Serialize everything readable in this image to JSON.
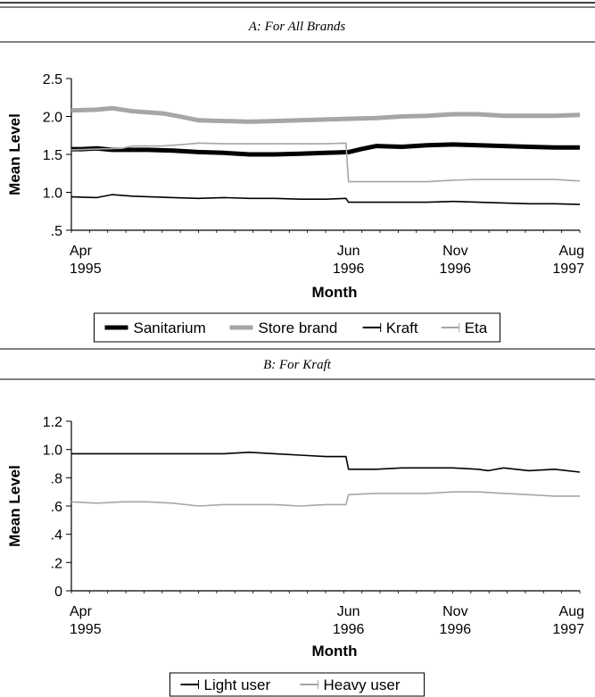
{
  "chart_data": [
    {
      "panel_title": "A: For All Brands",
      "type": "line",
      "xlabel": "Month",
      "ylabel": "Mean Level",
      "ylim": [
        0.5,
        2.5
      ],
      "yticks": [
        "2.5",
        "2.0",
        "1.5",
        "1.0",
        ".5"
      ],
      "xticks": [
        {
          "line1": "Apr",
          "line2": "1995",
          "t": 0
        },
        {
          "line1": "Jun",
          "line2": "1996",
          "t": 0.545
        },
        {
          "line1": "Nov",
          "line2": "1996",
          "t": 0.755
        },
        {
          "line1": "Aug",
          "line2": "1997",
          "t": 1
        }
      ],
      "legend_position": "bottom",
      "series": [
        {
          "name": "Sanitarium",
          "color": "#000000",
          "style": "thick",
          "points": [
            [
              0,
              1.57
            ],
            [
              0.02,
              1.57
            ],
            [
              0.05,
              1.58
            ],
            [
              0.08,
              1.56
            ],
            [
              0.15,
              1.56
            ],
            [
              0.2,
              1.55
            ],
            [
              0.25,
              1.53
            ],
            [
              0.3,
              1.52
            ],
            [
              0.35,
              1.5
            ],
            [
              0.4,
              1.5
            ],
            [
              0.45,
              1.51
            ],
            [
              0.5,
              1.52
            ],
            [
              0.545,
              1.53
            ],
            [
              0.57,
              1.57
            ],
            [
              0.6,
              1.61
            ],
            [
              0.65,
              1.6
            ],
            [
              0.7,
              1.62
            ],
            [
              0.75,
              1.63
            ],
            [
              0.8,
              1.62
            ],
            [
              0.85,
              1.61
            ],
            [
              0.9,
              1.6
            ],
            [
              0.95,
              1.59
            ],
            [
              1.0,
              1.59
            ]
          ]
        },
        {
          "name": "Store brand",
          "color": "#a6a6a6",
          "style": "thick",
          "points": [
            [
              0,
              2.08
            ],
            [
              0.05,
              2.09
            ],
            [
              0.08,
              2.11
            ],
            [
              0.12,
              2.07
            ],
            [
              0.18,
              2.04
            ],
            [
              0.22,
              1.99
            ],
            [
              0.25,
              1.95
            ],
            [
              0.3,
              1.94
            ],
            [
              0.35,
              1.93
            ],
            [
              0.4,
              1.94
            ],
            [
              0.45,
              1.95
            ],
            [
              0.5,
              1.96
            ],
            [
              0.545,
              1.97
            ],
            [
              0.6,
              1.98
            ],
            [
              0.65,
              2.0
            ],
            [
              0.7,
              2.01
            ],
            [
              0.75,
              2.03
            ],
            [
              0.8,
              2.03
            ],
            [
              0.85,
              2.01
            ],
            [
              0.9,
              2.01
            ],
            [
              0.95,
              2.01
            ],
            [
              1.0,
              2.02
            ]
          ]
        },
        {
          "name": "Kraft",
          "color": "#000000",
          "style": "thin",
          "points": [
            [
              0,
              0.94
            ],
            [
              0.05,
              0.93
            ],
            [
              0.08,
              0.97
            ],
            [
              0.12,
              0.95
            ],
            [
              0.2,
              0.93
            ],
            [
              0.25,
              0.92
            ],
            [
              0.3,
              0.93
            ],
            [
              0.35,
              0.92
            ],
            [
              0.4,
              0.92
            ],
            [
              0.45,
              0.91
            ],
            [
              0.5,
              0.91
            ],
            [
              0.54,
              0.92
            ],
            [
              0.545,
              0.87
            ],
            [
              0.6,
              0.87
            ],
            [
              0.7,
              0.87
            ],
            [
              0.75,
              0.88
            ],
            [
              0.8,
              0.87
            ],
            [
              0.85,
              0.86
            ],
            [
              0.9,
              0.85
            ],
            [
              0.95,
              0.85
            ],
            [
              1.0,
              0.84
            ]
          ]
        },
        {
          "name": "Eta",
          "color": "#a6a6a6",
          "style": "thin",
          "points": [
            [
              0,
              1.56
            ],
            [
              0.1,
              1.58
            ],
            [
              0.12,
              1.61
            ],
            [
              0.18,
              1.61
            ],
            [
              0.22,
              1.63
            ],
            [
              0.25,
              1.65
            ],
            [
              0.3,
              1.64
            ],
            [
              0.4,
              1.64
            ],
            [
              0.5,
              1.64
            ],
            [
              0.54,
              1.65
            ],
            [
              0.545,
              1.14
            ],
            [
              0.6,
              1.14
            ],
            [
              0.7,
              1.14
            ],
            [
              0.75,
              1.16
            ],
            [
              0.8,
              1.17
            ],
            [
              0.85,
              1.17
            ],
            [
              0.9,
              1.17
            ],
            [
              0.95,
              1.17
            ],
            [
              1.0,
              1.15
            ]
          ]
        }
      ]
    },
    {
      "panel_title": "B: For Kraft",
      "type": "line",
      "xlabel": "Month",
      "ylabel": "Mean Level",
      "ylim": [
        0,
        1.2
      ],
      "yticks": [
        "1.2",
        "1.0",
        ".8",
        ".6",
        ".4",
        ".2",
        "0"
      ],
      "xticks": [
        {
          "line1": "Apr",
          "line2": "1995",
          "t": 0
        },
        {
          "line1": "Jun",
          "line2": "1996",
          "t": 0.545
        },
        {
          "line1": "Nov",
          "line2": "1996",
          "t": 0.755
        },
        {
          "line1": "Aug",
          "line2": "1997",
          "t": 1
        }
      ],
      "legend_position": "bottom",
      "series": [
        {
          "name": "Light user",
          "color": "#000000",
          "style": "thin",
          "points": [
            [
              0,
              0.97
            ],
            [
              0.1,
              0.97
            ],
            [
              0.2,
              0.97
            ],
            [
              0.3,
              0.97
            ],
            [
              0.35,
              0.98
            ],
            [
              0.4,
              0.97
            ],
            [
              0.45,
              0.96
            ],
            [
              0.5,
              0.95
            ],
            [
              0.54,
              0.95
            ],
            [
              0.545,
              0.86
            ],
            [
              0.6,
              0.86
            ],
            [
              0.65,
              0.87
            ],
            [
              0.7,
              0.87
            ],
            [
              0.75,
              0.87
            ],
            [
              0.8,
              0.86
            ],
            [
              0.82,
              0.85
            ],
            [
              0.85,
              0.87
            ],
            [
              0.9,
              0.85
            ],
            [
              0.95,
              0.86
            ],
            [
              1.0,
              0.84
            ]
          ]
        },
        {
          "name": "Heavy user",
          "color": "#a6a6a6",
          "style": "thin",
          "points": [
            [
              0,
              0.63
            ],
            [
              0.05,
              0.62
            ],
            [
              0.1,
              0.63
            ],
            [
              0.15,
              0.63
            ],
            [
              0.2,
              0.62
            ],
            [
              0.25,
              0.6
            ],
            [
              0.3,
              0.61
            ],
            [
              0.35,
              0.61
            ],
            [
              0.4,
              0.61
            ],
            [
              0.45,
              0.6
            ],
            [
              0.5,
              0.61
            ],
            [
              0.54,
              0.61
            ],
            [
              0.545,
              0.68
            ],
            [
              0.6,
              0.69
            ],
            [
              0.65,
              0.69
            ],
            [
              0.7,
              0.69
            ],
            [
              0.75,
              0.7
            ],
            [
              0.8,
              0.7
            ],
            [
              0.85,
              0.69
            ],
            [
              0.9,
              0.68
            ],
            [
              0.95,
              0.67
            ],
            [
              1.0,
              0.67
            ]
          ]
        }
      ]
    }
  ]
}
